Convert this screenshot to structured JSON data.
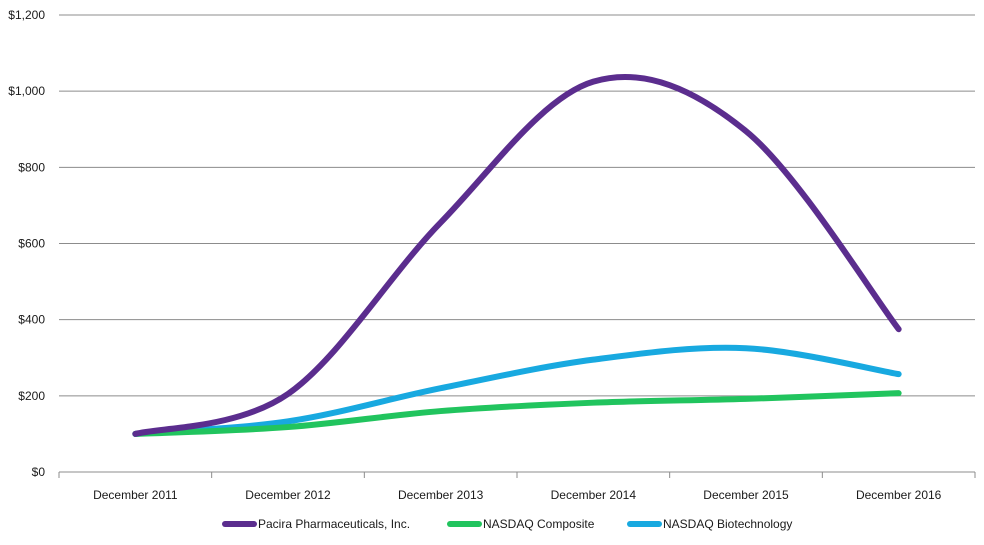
{
  "chart_data": {
    "type": "line",
    "title": "",
    "xlabel": "",
    "ylabel": "",
    "categories": [
      "December 2011",
      "December 2012",
      "December 2013",
      "December 2014",
      "December 2015",
      "December 2016"
    ],
    "y_tick_labels": [
      "$0",
      "$200",
      "$400",
      "$600",
      "$800",
      "$1,000",
      "$1,200"
    ],
    "ylim": [
      0,
      1200
    ],
    "grid": true,
    "legend_position": "bottom",
    "series": [
      {
        "name": "Pacira Pharmaceuticals, Inc.",
        "color": "#5b2d8e",
        "values": [
          100,
          205,
          655,
          1025,
          895,
          375
        ]
      },
      {
        "name": "NASDAQ Composite",
        "color": "#21c45e",
        "values": [
          100,
          118,
          160,
          182,
          192,
          207
        ]
      },
      {
        "name": "NASDAQ Biotechnology",
        "color": "#18a9e0",
        "values": [
          100,
          133,
          220,
          295,
          325,
          257
        ]
      }
    ]
  }
}
